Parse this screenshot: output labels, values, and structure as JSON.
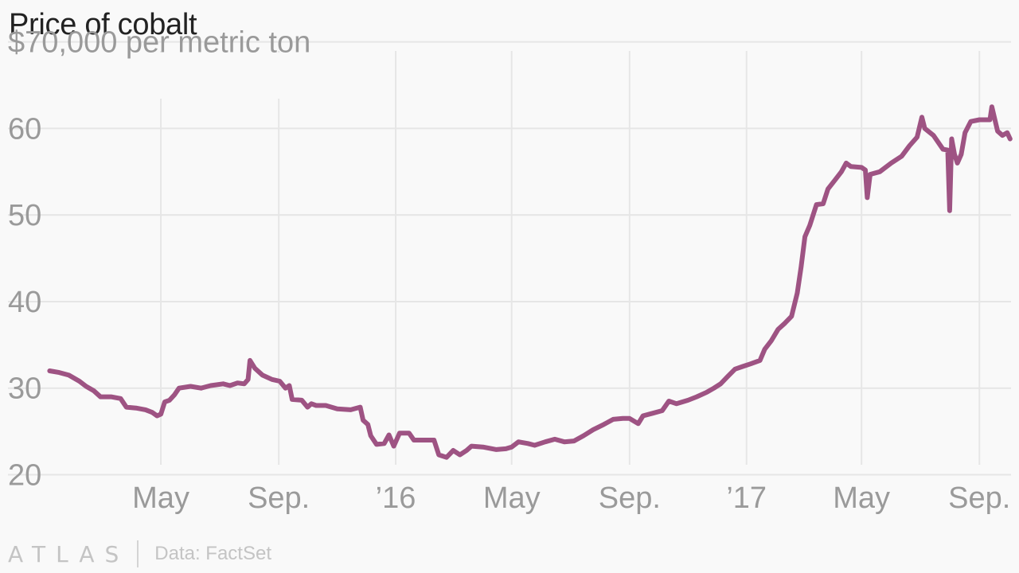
{
  "title": "Price of cobalt",
  "footer": {
    "logo": "ATLAS",
    "source": "Data: FactSet"
  },
  "chart_data": {
    "type": "line",
    "title": "Price of cobalt",
    "unit_label": "$70,000 per metric ton",
    "y_ticks": [
      {
        "value": 20,
        "label": "20"
      },
      {
        "value": 30,
        "label": "30"
      },
      {
        "value": 40,
        "label": "40"
      },
      {
        "value": 50,
        "label": "50"
      },
      {
        "value": 60,
        "label": "60"
      },
      {
        "value": 70,
        "label": ""
      }
    ],
    "x_ticks": [
      {
        "value": "2015-05-01",
        "label": "May"
      },
      {
        "value": "2015-09-01",
        "label": "Sep."
      },
      {
        "value": "2016-01-01",
        "label": "’16"
      },
      {
        "value": "2016-05-01",
        "label": "May"
      },
      {
        "value": "2016-09-01",
        "label": "Sep."
      },
      {
        "value": "2017-01-01",
        "label": "’17"
      },
      {
        "value": "2017-05-01",
        "label": "May"
      },
      {
        "value": "2017-09-01",
        "label": "Sep."
      }
    ],
    "xlim": [
      "2015-01-03",
      "2017-10-04"
    ],
    "ylim": [
      16,
      73
    ],
    "grid": true,
    "line_color": "#9e5383",
    "series": [
      {
        "points": [
          [
            "2015-01-05",
            32.0
          ],
          [
            "2015-01-15",
            31.8
          ],
          [
            "2015-01-25",
            31.5
          ],
          [
            "2015-02-05",
            30.8
          ],
          [
            "2015-02-12",
            30.2
          ],
          [
            "2015-02-20",
            29.7
          ],
          [
            "2015-02-27",
            29.0
          ],
          [
            "2015-03-10",
            29.0
          ],
          [
            "2015-03-20",
            28.8
          ],
          [
            "2015-03-26",
            27.8
          ],
          [
            "2015-04-05",
            27.7
          ],
          [
            "2015-04-15",
            27.5
          ],
          [
            "2015-04-22",
            27.2
          ],
          [
            "2015-04-27",
            26.8
          ],
          [
            "2015-05-01",
            27.0
          ],
          [
            "2015-05-05",
            28.4
          ],
          [
            "2015-05-10",
            28.6
          ],
          [
            "2015-05-15",
            29.2
          ],
          [
            "2015-05-20",
            30.0
          ],
          [
            "2015-06-01",
            30.2
          ],
          [
            "2015-06-12",
            30.0
          ],
          [
            "2015-06-22",
            30.3
          ],
          [
            "2015-07-05",
            30.5
          ],
          [
            "2015-07-12",
            30.3
          ],
          [
            "2015-07-20",
            30.6
          ],
          [
            "2015-07-27",
            30.5
          ],
          [
            "2015-07-31",
            31.0
          ],
          [
            "2015-08-02",
            33.2
          ],
          [
            "2015-08-07",
            32.3
          ],
          [
            "2015-08-15",
            31.5
          ],
          [
            "2015-08-25",
            31.0
          ],
          [
            "2015-09-02",
            30.8
          ],
          [
            "2015-09-08",
            30.0
          ],
          [
            "2015-09-12",
            30.3
          ],
          [
            "2015-09-15",
            28.7
          ],
          [
            "2015-09-25",
            28.6
          ],
          [
            "2015-10-01",
            27.8
          ],
          [
            "2015-10-05",
            28.2
          ],
          [
            "2015-10-10",
            28.0
          ],
          [
            "2015-10-20",
            28.0
          ],
          [
            "2015-11-01",
            27.6
          ],
          [
            "2015-11-15",
            27.5
          ],
          [
            "2015-11-25",
            27.8
          ],
          [
            "2015-11-28",
            26.3
          ],
          [
            "2015-12-03",
            25.8
          ],
          [
            "2015-12-06",
            24.5
          ],
          [
            "2015-12-12",
            23.5
          ],
          [
            "2015-12-20",
            23.6
          ],
          [
            "2015-12-25",
            24.6
          ],
          [
            "2015-12-30",
            23.3
          ],
          [
            "2016-01-05",
            24.8
          ],
          [
            "2016-01-15",
            24.8
          ],
          [
            "2016-01-20",
            24.0
          ],
          [
            "2016-02-10",
            24.0
          ],
          [
            "2016-02-15",
            22.3
          ],
          [
            "2016-02-23",
            22.0
          ],
          [
            "2016-03-01",
            22.8
          ],
          [
            "2016-03-08",
            22.3
          ],
          [
            "2016-03-15",
            22.8
          ],
          [
            "2016-03-20",
            23.3
          ],
          [
            "2016-04-01",
            23.2
          ],
          [
            "2016-04-15",
            22.9
          ],
          [
            "2016-04-25",
            23.0
          ],
          [
            "2016-05-01",
            23.2
          ],
          [
            "2016-05-08",
            23.8
          ],
          [
            "2016-05-18",
            23.6
          ],
          [
            "2016-05-25",
            23.4
          ],
          [
            "2016-06-05",
            23.8
          ],
          [
            "2016-06-15",
            24.1
          ],
          [
            "2016-06-25",
            23.8
          ],
          [
            "2016-07-05",
            23.9
          ],
          [
            "2016-07-15",
            24.5
          ],
          [
            "2016-07-25",
            25.2
          ],
          [
            "2016-08-05",
            25.8
          ],
          [
            "2016-08-15",
            26.4
          ],
          [
            "2016-08-25",
            26.5
          ],
          [
            "2016-09-01",
            26.5
          ],
          [
            "2016-09-10",
            25.9
          ],
          [
            "2016-09-15",
            26.8
          ],
          [
            "2016-09-25",
            27.1
          ],
          [
            "2016-10-05",
            27.4
          ],
          [
            "2016-10-12",
            28.5
          ],
          [
            "2016-10-20",
            28.2
          ],
          [
            "2016-11-01",
            28.6
          ],
          [
            "2016-11-10",
            29.0
          ],
          [
            "2016-11-20",
            29.5
          ],
          [
            "2016-11-28",
            30.0
          ],
          [
            "2016-12-05",
            30.5
          ],
          [
            "2016-12-12",
            31.3
          ],
          [
            "2016-12-20",
            32.2
          ],
          [
            "2016-12-28",
            32.5
          ],
          [
            "2017-01-05",
            32.8
          ],
          [
            "2017-01-15",
            33.2
          ],
          [
            "2017-01-20",
            34.5
          ],
          [
            "2017-01-27",
            35.5
          ],
          [
            "2017-02-03",
            36.8
          ],
          [
            "2017-02-10",
            37.5
          ],
          [
            "2017-02-17",
            38.3
          ],
          [
            "2017-02-23",
            41.0
          ],
          [
            "2017-02-27",
            44.0
          ],
          [
            "2017-03-03",
            47.5
          ],
          [
            "2017-03-08",
            48.8
          ],
          [
            "2017-03-15",
            51.2
          ],
          [
            "2017-03-22",
            51.3
          ],
          [
            "2017-03-27",
            53.0
          ],
          [
            "2017-04-03",
            54.0
          ],
          [
            "2017-04-10",
            55.0
          ],
          [
            "2017-04-15",
            56.0
          ],
          [
            "2017-04-20",
            55.6
          ],
          [
            "2017-05-01",
            55.5
          ],
          [
            "2017-05-05",
            55.2
          ],
          [
            "2017-05-07",
            52.0
          ],
          [
            "2017-05-10",
            54.7
          ],
          [
            "2017-05-20",
            55.0
          ],
          [
            "2017-06-01",
            56.0
          ],
          [
            "2017-06-12",
            56.8
          ],
          [
            "2017-06-20",
            58.0
          ],
          [
            "2017-06-28",
            59.0
          ],
          [
            "2017-07-03",
            61.3
          ],
          [
            "2017-07-06",
            60.0
          ],
          [
            "2017-07-15",
            59.2
          ],
          [
            "2017-07-25",
            57.6
          ],
          [
            "2017-07-30",
            57.5
          ],
          [
            "2017-08-01",
            50.5
          ],
          [
            "2017-08-03",
            58.8
          ],
          [
            "2017-08-06",
            57.0
          ],
          [
            "2017-08-09",
            56.0
          ],
          [
            "2017-08-13",
            57.0
          ],
          [
            "2017-08-17",
            59.5
          ],
          [
            "2017-08-23",
            60.8
          ],
          [
            "2017-09-01",
            61.0
          ],
          [
            "2017-09-12",
            61.0
          ],
          [
            "2017-09-14",
            62.5
          ],
          [
            "2017-09-20",
            59.7
          ],
          [
            "2017-09-25",
            59.2
          ],
          [
            "2017-09-30",
            59.5
          ],
          [
            "2017-10-03",
            58.8
          ]
        ]
      }
    ]
  }
}
